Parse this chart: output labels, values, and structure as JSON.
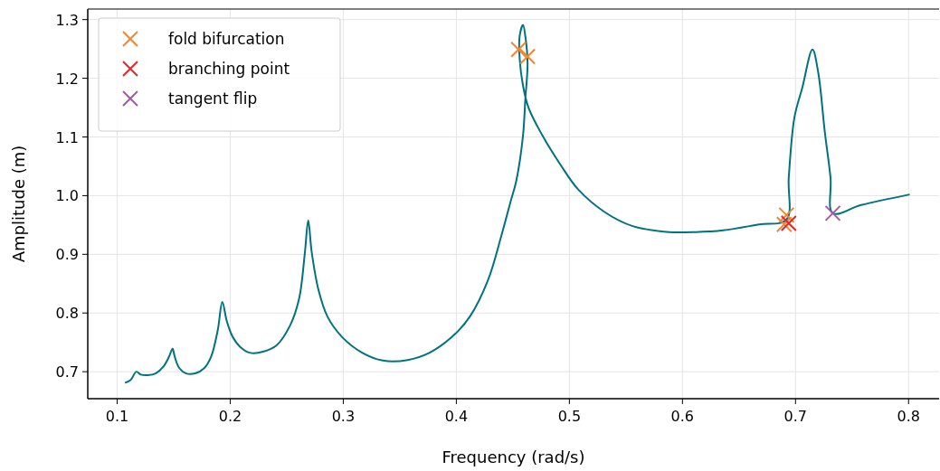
{
  "chart_data": {
    "type": "line",
    "xlabel": "Frequency (rad/s)",
    "ylabel": "Amplitude (m)",
    "xlim": [
      0.074,
      0.827
    ],
    "ylim": [
      0.654,
      1.318
    ],
    "xticks": [
      0.1,
      0.2,
      0.3,
      0.4,
      0.5,
      0.6,
      0.7,
      0.8
    ],
    "yticks": [
      0.7,
      0.8,
      0.9,
      {
        "value": 1,
        "label": "1.0"
      },
      1.1,
      1.2,
      1.3
    ],
    "grid": true,
    "legend": "top left",
    "line_style": "solid",
    "series": [
      {
        "color": "#00737f",
        "x": [
          0.107,
          0.112,
          0.117,
          0.121,
          0.127,
          0.134,
          0.141,
          0.146,
          0.149,
          0.151,
          0.155,
          0.161,
          0.169,
          0.177,
          0.183,
          0.189,
          0.193,
          0.197,
          0.202,
          0.209,
          0.218,
          0.229,
          0.241,
          0.253,
          0.261,
          0.266,
          0.269,
          0.272,
          0.278,
          0.286,
          0.299,
          0.317,
          0.335,
          0.357,
          0.376,
          0.396,
          0.412,
          0.428,
          0.44,
          0.448,
          0.453,
          0.459,
          0.461,
          0.463,
          0.461,
          0.459,
          0.456,
          0.456,
          0.459,
          0.464,
          0.476,
          0.492,
          0.508,
          0.532,
          0.556,
          0.588,
          0.612,
          0.636,
          0.668,
          0.692,
          0.694,
          0.699,
          0.706,
          0.715,
          0.72,
          0.726,
          0.731,
          0.733,
          0.758,
          0.801
        ],
        "values": [
          0.681,
          0.686,
          0.7,
          0.695,
          0.694,
          0.697,
          0.709,
          0.726,
          0.739,
          0.725,
          0.706,
          0.697,
          0.697,
          0.706,
          0.725,
          0.771,
          0.819,
          0.786,
          0.76,
          0.742,
          0.732,
          0.734,
          0.745,
          0.779,
          0.825,
          0.902,
          0.958,
          0.905,
          0.84,
          0.794,
          0.759,
          0.732,
          0.719,
          0.72,
          0.732,
          0.759,
          0.794,
          0.856,
          0.933,
          0.99,
          1.025,
          1.103,
          1.164,
          1.226,
          1.272,
          1.291,
          1.272,
          1.234,
          1.187,
          1.149,
          1.103,
          1.053,
          1.01,
          0.971,
          0.948,
          0.938,
          0.938,
          0.941,
          0.951,
          0.959,
          1.03,
          1.133,
          1.184,
          1.249,
          1.211,
          1.107,
          1.03,
          0.97,
          0.984,
          1.002
        ]
      },
      {
        "type": "scatter",
        "name": "fold bifurcation",
        "color": "#f28532",
        "marker": "cross",
        "x": [
          0.455,
          0.463,
          0.692,
          0.69
        ],
        "values": [
          1.249,
          1.237,
          0.967,
          0.951
        ]
      },
      {
        "type": "scatter",
        "name": "branching point",
        "color": "#e3262a",
        "marker": "cross",
        "x": [
          0.694
        ],
        "values": [
          0.953
        ]
      },
      {
        "type": "scatter",
        "name": "tangent flip",
        "color": "#a05aa0",
        "marker": "cross",
        "x": [
          0.733
        ],
        "values": [
          0.97
        ]
      }
    ]
  }
}
